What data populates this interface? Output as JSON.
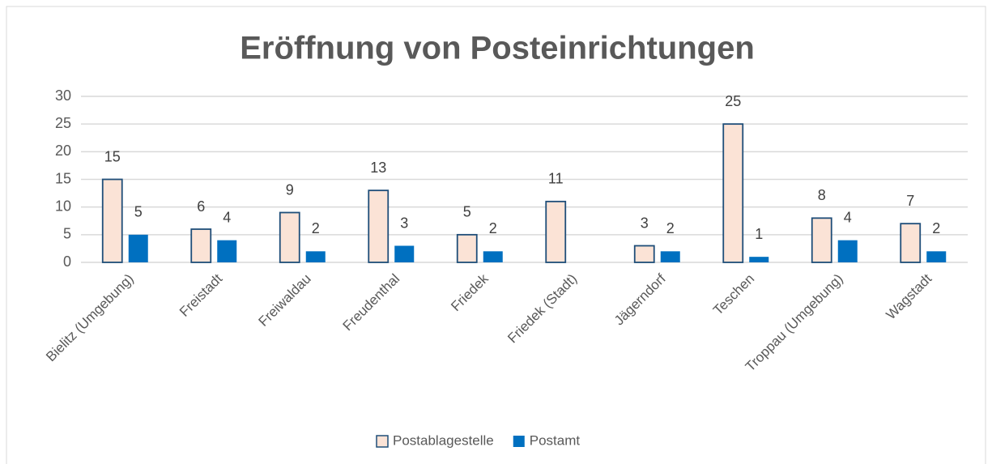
{
  "chart_data": {
    "type": "bar",
    "title": "Eröffnung von Posteinrichtungen",
    "categories": [
      "Bielitz (Umgebung)",
      "Freistadt",
      "Freiwaldau",
      "Freudenthal",
      "Friedek",
      "Friedek (Stadt)",
      "Jägerndorf",
      "Teschen",
      "Troppau (Umgebung)",
      "Wagstadt"
    ],
    "series": [
      {
        "name": "Postablagestelle",
        "color": "#fbe3d6",
        "stroke": "#1f4e79",
        "values": [
          15,
          6,
          9,
          13,
          5,
          11,
          3,
          25,
          8,
          7
        ]
      },
      {
        "name": "Postamt",
        "color": "#0070c0",
        "values": [
          5,
          4,
          2,
          3,
          2,
          null,
          2,
          1,
          4,
          2
        ]
      }
    ],
    "ylim": [
      0,
      30
    ],
    "yticks": [
      0,
      5,
      10,
      15,
      20,
      25,
      30
    ],
    "grid": true,
    "legend": "bottom"
  }
}
